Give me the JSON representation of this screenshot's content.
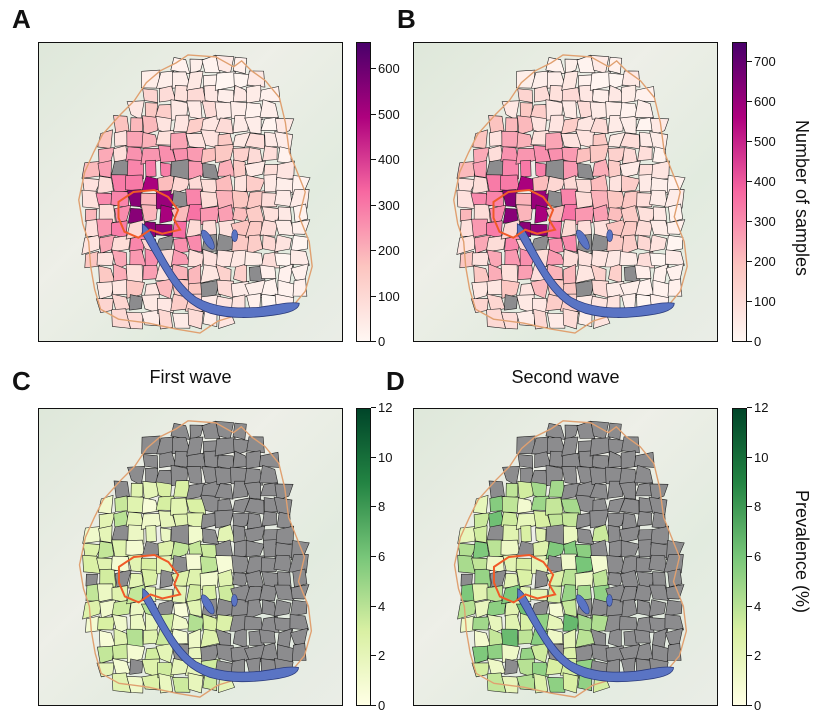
{
  "panels": [
    {
      "letter": "A",
      "title": ""
    },
    {
      "letter": "B",
      "title": ""
    },
    {
      "letter": "C",
      "title": "First wave"
    },
    {
      "letter": "D",
      "title": "Second wave"
    }
  ],
  "colorbars": {
    "samples_A": {
      "ticks": [
        "0",
        "100",
        "200",
        "300",
        "400",
        "500",
        "600"
      ],
      "max": 660,
      "label": ""
    },
    "samples_B": {
      "ticks": [
        "0",
        "100",
        "200",
        "300",
        "400",
        "500",
        "600",
        "700"
      ],
      "max": 750,
      "label": "Number of samples"
    },
    "prevalence_C": {
      "ticks": [
        "0",
        "2",
        "4",
        "6",
        "8",
        "10",
        "12"
      ],
      "max": 12,
      "label": ""
    },
    "prevalence_D": {
      "ticks": [
        "0",
        "2",
        "4",
        "6",
        "8",
        "10",
        "12"
      ],
      "max": 12,
      "label": "Prevalence (%)"
    }
  },
  "colors": {
    "samples_scale": [
      "#fff7f3",
      "#fcc5c0",
      "#f768a1",
      "#ae017e",
      "#49006a"
    ],
    "prevalence_scale": [
      "#ffffe5",
      "#d9f0a3",
      "#78c679",
      "#238443",
      "#004529"
    ],
    "no_data": "#8c8c8e",
    "lake": "#5a74c4",
    "city_outline": "#f05a28",
    "canton_outline": "#e0a070"
  }
}
